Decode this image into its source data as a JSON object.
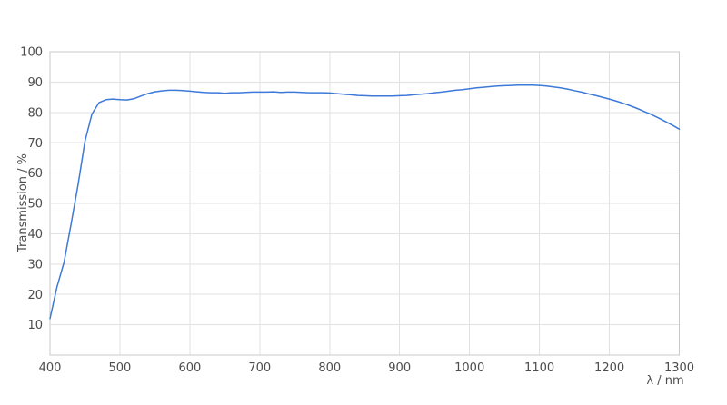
{
  "chart_data": {
    "type": "line",
    "title": "",
    "xlabel": "λ / nm",
    "ylabel": "Transmission / %",
    "xlim": [
      400,
      1300
    ],
    "ylim": [
      0,
      100
    ],
    "xticks": [
      400,
      500,
      600,
      700,
      800,
      900,
      1000,
      1100,
      1200,
      1300
    ],
    "yticks": [
      10,
      20,
      30,
      40,
      50,
      60,
      70,
      80,
      90,
      100
    ],
    "grid": true,
    "legend": false,
    "colors": {
      "line": "#3c79d8",
      "grid": "#e2e2e2",
      "border": "#c9c9c9",
      "tick_text": "#4d4d4d",
      "axis_title_text": "#4d4d4d",
      "background": "#ffffff"
    },
    "series": [
      {
        "name": "Transmission",
        "x": [
          400,
          410,
          420,
          430,
          440,
          450,
          460,
          470,
          480,
          490,
          500,
          510,
          520,
          530,
          540,
          550,
          560,
          570,
          580,
          590,
          600,
          610,
          620,
          630,
          640,
          650,
          660,
          670,
          680,
          690,
          700,
          710,
          720,
          730,
          740,
          750,
          760,
          770,
          780,
          790,
          800,
          810,
          820,
          830,
          840,
          850,
          860,
          870,
          880,
          890,
          900,
          910,
          920,
          930,
          940,
          950,
          960,
          970,
          980,
          990,
          1000,
          1010,
          1020,
          1030,
          1040,
          1050,
          1060,
          1070,
          1080,
          1090,
          1100,
          1110,
          1120,
          1130,
          1140,
          1150,
          1160,
          1170,
          1180,
          1190,
          1200,
          1210,
          1220,
          1230,
          1240,
          1250,
          1260,
          1270,
          1280,
          1290,
          1300
        ],
        "y": [
          12.0,
          22.5,
          30.5,
          43.0,
          56.0,
          70.5,
          79.5,
          83.2,
          84.2,
          84.4,
          84.2,
          84.1,
          84.5,
          85.4,
          86.2,
          86.8,
          87.1,
          87.3,
          87.3,
          87.2,
          87.0,
          86.8,
          86.6,
          86.5,
          86.5,
          86.3,
          86.5,
          86.5,
          86.6,
          86.7,
          86.7,
          86.7,
          86.8,
          86.6,
          86.7,
          86.7,
          86.6,
          86.5,
          86.5,
          86.5,
          86.4,
          86.2,
          86.0,
          85.8,
          85.6,
          85.5,
          85.4,
          85.4,
          85.4,
          85.4,
          85.5,
          85.6,
          85.8,
          86.0,
          86.2,
          86.5,
          86.7,
          87.0,
          87.3,
          87.5,
          87.8,
          88.1,
          88.3,
          88.5,
          88.7,
          88.8,
          88.9,
          89.0,
          89.0,
          89.0,
          88.9,
          88.7,
          88.4,
          88.1,
          87.7,
          87.2,
          86.7,
          86.1,
          85.6,
          85.0,
          84.4,
          83.7,
          83.0,
          82.2,
          81.3,
          80.3,
          79.3,
          78.2,
          77.0,
          75.8,
          74.5
        ]
      }
    ]
  }
}
